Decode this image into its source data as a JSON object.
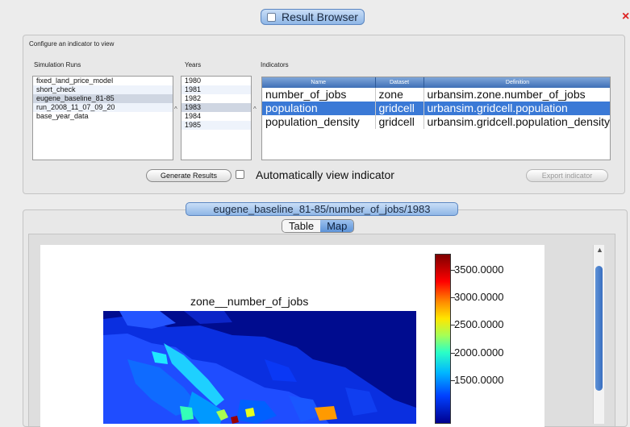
{
  "window": {
    "title": "Result Browser",
    "close_glyph": "×"
  },
  "config": {
    "section_label": "Configure an indicator to view",
    "runs_label": "Simulation Runs",
    "years_label": "Years",
    "indicators_label": "Indicators",
    "simulation_runs": [
      "fixed_land_price_model",
      "short_check",
      "eugene_baseline_81-85",
      "run_2008_11_07_09_20",
      "base_year_data"
    ],
    "selected_run": "eugene_baseline_81-85",
    "years": [
      "1980",
      "1981",
      "1982",
      "1983",
      "1984",
      "1985"
    ],
    "selected_year": "1983",
    "indicator_columns": [
      "Name",
      "Dataset",
      "Definition"
    ],
    "indicators": [
      {
        "name": "number_of_jobs",
        "dataset": "zone",
        "definition": "urbansim.zone.number_of_jobs"
      },
      {
        "name": "population",
        "dataset": "gridcell",
        "definition": "urbansim.gridcell.population"
      },
      {
        "name": "population_density",
        "dataset": "gridcell",
        "definition": "urbansim.gridcell.population_density"
      }
    ],
    "selected_indicator": "population",
    "generate_button": "Generate Results",
    "auto_view_label": "Automatically view indicator",
    "auto_view_checked": false,
    "export_button": "Export indicator"
  },
  "result": {
    "title": "eugene_baseline_81-85/number_of_jobs/1983",
    "tabs": [
      "Table",
      "Map"
    ],
    "active_tab": "Map",
    "plot_title": "zone__number_of_jobs",
    "colorbar_ticks": [
      "3500.0000",
      "3000.0000",
      "2500.0000",
      "2000.0000",
      "1500.0000"
    ],
    "colorbar_range": [
      700,
      3800
    ]
  },
  "colors": {
    "accent": "#3a79d6",
    "map_background": "#000c8f"
  }
}
